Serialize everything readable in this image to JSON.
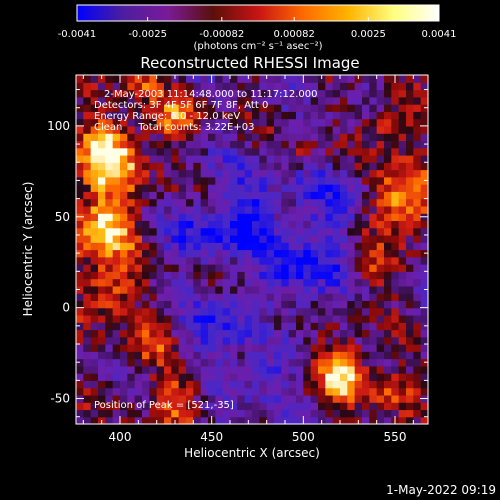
{
  "colorbar": {
    "tick_labels": [
      "-0.0041",
      "-0.0025",
      "-0.00082",
      "0.00082",
      "0.0025",
      "0.0041"
    ],
    "tick_values": [
      -0.0041,
      -0.0025,
      -0.00082,
      0.00082,
      0.0025,
      0.0041
    ],
    "unit": "(photons cm⁻² s⁻¹ asec⁻²)",
    "colors": [
      "#0000ff",
      "#4b1ea0",
      "#7a1a9a",
      "#5a0f0a",
      "#c81414",
      "#ff6a00",
      "#ffb400",
      "#ffff80",
      "#ffffff"
    ]
  },
  "annotations": {
    "time_range": "2-May-2003 11:14:48.000 to 11:17:12.000",
    "detectors": "Detectors: 3F 4F 5F 6F 7F 8F, Att 0",
    "energy_range": "Energy Range: 6.0 - 12.0 keV",
    "algorithm_counts": "Clean     Total counts: 3.22E+03",
    "peak_position": "Position of Peak = [521,-35]"
  },
  "footer": {
    "timestamp": "1-May-2022 09:19"
  },
  "chart_data": {
    "type": "heatmap",
    "title": "Reconstructed RHESSI Image",
    "xlabel": "Heliocentric X (arcsec)",
    "ylabel": "Heliocentric Y (arcsec)",
    "xlim": [
      376,
      568
    ],
    "ylim": [
      -64,
      128
    ],
    "x_ticks": [
      400,
      450,
      500,
      550
    ],
    "y_ticks": [
      -50,
      0,
      50,
      100
    ],
    "x_tick_labels": [
      "400",
      "450",
      "500",
      "550"
    ],
    "y_tick_labels": [
      "-50",
      "0",
      "50",
      "100"
    ],
    "value_range": [
      -0.0041,
      0.0041
    ],
    "peak": {
      "x": 521,
      "y": -35
    },
    "bright_regions": [
      {
        "x": 395,
        "y": 85,
        "sigma": 14,
        "amp": 0.0045
      },
      {
        "x": 390,
        "y": 45,
        "sigma": 13,
        "amp": 0.0045
      },
      {
        "x": 392,
        "y": 10,
        "sigma": 11,
        "amp": 0.003
      },
      {
        "x": 430,
        "y": 105,
        "sigma": 9,
        "amp": 0.0028
      },
      {
        "x": 410,
        "y": 125,
        "sigma": 8,
        "amp": 0.0022
      },
      {
        "x": 415,
        "y": -20,
        "sigma": 10,
        "amp": 0.0018
      },
      {
        "x": 430,
        "y": -50,
        "sigma": 10,
        "amp": 0.0025
      },
      {
        "x": 555,
        "y": 60,
        "sigma": 13,
        "amp": 0.0042
      },
      {
        "x": 548,
        "y": 100,
        "sigma": 9,
        "amp": 0.0028
      },
      {
        "x": 540,
        "y": 20,
        "sigma": 8,
        "amp": 0.002
      },
      {
        "x": 521,
        "y": -35,
        "sigma": 10,
        "amp": 0.0048
      },
      {
        "x": 548,
        "y": -45,
        "sigma": 9,
        "amp": 0.0025
      },
      {
        "x": 500,
        "y": 85,
        "sigma": 6,
        "amp": 0.0012
      },
      {
        "x": 470,
        "y": 25,
        "sigma": 6,
        "amp": 0.0012
      },
      {
        "x": 485,
        "y": -10,
        "sigma": 6,
        "amp": 0.0012
      },
      {
        "x": 455,
        "y": 60,
        "sigma": 6,
        "amp": 0.001
      }
    ],
    "dim_regions": [
      {
        "x": 470,
        "y": 50,
        "sigma": 18,
        "amp": -0.003
      },
      {
        "x": 500,
        "y": 20,
        "sigma": 15,
        "amp": -0.0028
      },
      {
        "x": 455,
        "y": -10,
        "sigma": 14,
        "amp": -0.0025
      },
      {
        "x": 520,
        "y": 60,
        "sigma": 12,
        "amp": -0.0022
      },
      {
        "x": 480,
        "y": -40,
        "sigma": 12,
        "amp": -0.002
      },
      {
        "x": 440,
        "y": 40,
        "sigma": 10,
        "amp": -0.0018
      }
    ]
  }
}
